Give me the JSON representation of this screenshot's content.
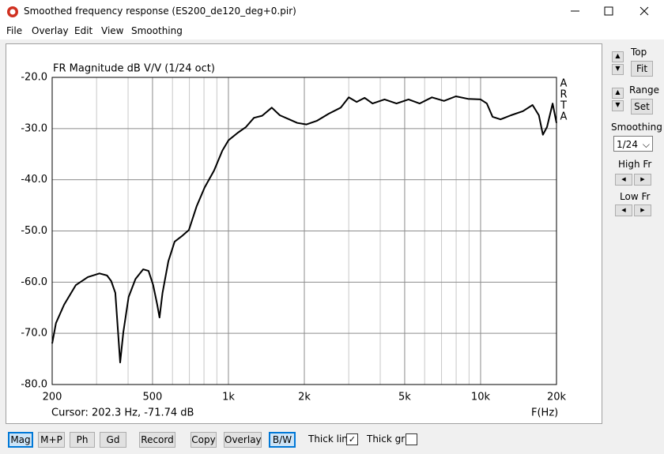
{
  "window": {
    "title": "Smoothed frequency response (ES200_de120_deg+0.pir)"
  },
  "menu": [
    "File",
    "Overlay",
    "Edit",
    "View",
    "Smoothing"
  ],
  "chart_data": {
    "type": "line",
    "title": "FR Magnitude dB V/V (1/24 oct)",
    "x_label": "F(Hz)",
    "logo": [
      "A",
      "R",
      "T",
      "A"
    ],
    "cursor": "Cursor: 202.3 Hz, -71.74 dB",
    "log_x": true,
    "grid": true,
    "xlim": [
      200,
      20000
    ],
    "ylim": [
      -80,
      -20
    ],
    "xticks": [
      {
        "value": 200,
        "label": "200"
      },
      {
        "value": 500,
        "label": "500"
      },
      {
        "value": 1000,
        "label": "1k"
      },
      {
        "value": 2000,
        "label": "2k"
      },
      {
        "value": 5000,
        "label": "5k"
      },
      {
        "value": 10000,
        "label": "10k"
      },
      {
        "value": 20000,
        "label": "20k"
      }
    ],
    "minor_xticks": [
      300,
      400,
      600,
      700,
      800,
      900,
      3000,
      4000,
      6000,
      7000,
      8000,
      9000
    ],
    "yticks": [
      {
        "value": -20,
        "label": "-20.0"
      },
      {
        "value": -30,
        "label": "-30.0"
      },
      {
        "value": -40,
        "label": "-40.0"
      },
      {
        "value": -50,
        "label": "-50.0"
      },
      {
        "value": -60,
        "label": "-60.0"
      },
      {
        "value": -70,
        "label": "-70.0"
      },
      {
        "value": -80,
        "label": "-80.0"
      }
    ],
    "x": [
      200,
      207,
      223,
      248,
      277,
      308,
      330,
      343,
      356,
      372,
      383,
      402,
      428,
      459,
      482,
      503,
      522,
      533,
      548,
      578,
      612,
      658,
      697,
      748,
      805,
      877,
      946,
      1000,
      1091,
      1173,
      1263,
      1360,
      1486,
      1599,
      1743,
      1875,
      2040,
      2240,
      2500,
      2790,
      3000,
      3225,
      3470,
      3730,
      4160,
      4640,
      5180,
      5730,
      6410,
      7160,
      7980,
      8910,
      10000,
      10590,
      11150,
      12000,
      13200,
      14720,
      16070,
      17030,
      17670,
      18340,
      19310,
      20000
    ],
    "series": [
      {
        "color": "#000000",
        "values": [
          -72,
          -68,
          -64.4,
          -60.6,
          -59,
          -58.3,
          -58.7,
          -59.8,
          -62.1,
          -75.7,
          -69.8,
          -62.9,
          -59.4,
          -57.5,
          -57.8,
          -60.6,
          -64.4,
          -66.9,
          -62.1,
          -55.9,
          -52.1,
          -50.9,
          -49.8,
          -45.2,
          -41.5,
          -38.2,
          -34.3,
          -32.3,
          -30.8,
          -29.7,
          -27.9,
          -27.5,
          -25.9,
          -27.4,
          -28.2,
          -28.9,
          -29.2,
          -28.5,
          -27.1,
          -25.9,
          -23.9,
          -24.8,
          -24,
          -25.1,
          -24.3,
          -25.1,
          -24.3,
          -25.1,
          -23.9,
          -24.6,
          -23.7,
          -24.2,
          -24.3,
          -25.1,
          -27.7,
          -28.2,
          -27.4,
          -26.6,
          -25.4,
          -27.4,
          -31.2,
          -29.7,
          -25.1,
          -28.9
        ]
      }
    ]
  },
  "side_panel": {
    "top": "Top",
    "fit": "Fit",
    "range": "Range",
    "set": "Set",
    "smoothing": "Smoothing",
    "smoothing_value": "1/24",
    "high_fr": "High Fr",
    "low_fr": "Low Fr"
  },
  "toolbar": {
    "buttons": [
      "Mag",
      "M+P",
      "Ph",
      "Gd",
      "Record",
      "Copy",
      "Overlay",
      "B/W"
    ],
    "checkboxes": [
      "Thick line",
      "Thick grid"
    ]
  }
}
